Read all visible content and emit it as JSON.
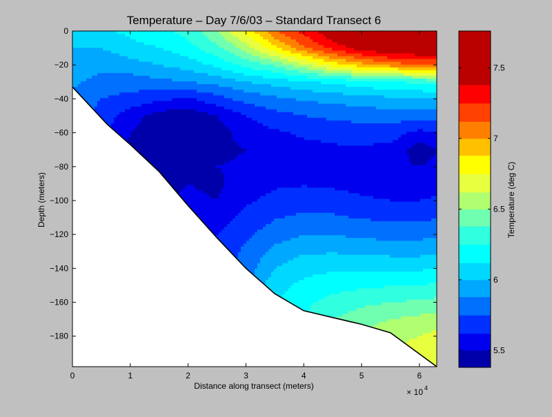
{
  "chart_data": {
    "type": "heatmap",
    "subtype": "filled-contour",
    "title": "Temperature – Day 7/6/03 – Standard Transect 6",
    "xlabel": "Distance along transect (meters)",
    "ylabel": "Depth (meters)",
    "x_multiplier_label": "× 10",
    "x_multiplier_exponent": "4",
    "xlim": [
      0,
      63000
    ],
    "ylim": [
      -198,
      0
    ],
    "x_ticks": [
      0,
      10000,
      20000,
      30000,
      40000,
      50000,
      60000
    ],
    "x_tick_labels": [
      "0",
      "1",
      "2",
      "3",
      "4",
      "5",
      "6"
    ],
    "y_ticks": [
      0,
      -20,
      -40,
      -60,
      -80,
      -100,
      -120,
      -140,
      -160,
      -180
    ],
    "y_tick_labels": [
      "0",
      "−20",
      "−40",
      "−60",
      "−80",
      "−100",
      "−120",
      "−140",
      "−160",
      "−180"
    ],
    "colorbar": {
      "label": "Temperature (deg C)",
      "range": [
        5.38,
        7.76
      ],
      "ticks": [
        5.5,
        6,
        6.5,
        7,
        7.5
      ],
      "tick_labels": [
        "5.5",
        "6",
        "6.5",
        "7",
        "7.5"
      ],
      "levels": [
        {
          "min": 5.38,
          "max": 5.5,
          "color": "#0000aa"
        },
        {
          "min": 5.5,
          "max": 5.62,
          "color": "#0000ee"
        },
        {
          "min": 5.62,
          "max": 5.75,
          "color": "#0030ff"
        },
        {
          "min": 5.75,
          "max": 5.88,
          "color": "#0070ff"
        },
        {
          "min": 5.88,
          "max": 6.0,
          "color": "#00a8ff"
        },
        {
          "min": 6.0,
          "max": 6.12,
          "color": "#00d8ff"
        },
        {
          "min": 6.12,
          "max": 6.25,
          "color": "#00ffff"
        },
        {
          "min": 6.25,
          "max": 6.38,
          "color": "#30ffe0"
        },
        {
          "min": 6.38,
          "max": 6.5,
          "color": "#70ffb0"
        },
        {
          "min": 6.5,
          "max": 6.62,
          "color": "#b0ff70"
        },
        {
          "min": 6.62,
          "max": 6.75,
          "color": "#e8ff40"
        },
        {
          "min": 6.75,
          "max": 6.88,
          "color": "#ffff00"
        },
        {
          "min": 6.88,
          "max": 7.0,
          "color": "#ffc000"
        },
        {
          "min": 7.0,
          "max": 7.12,
          "color": "#ff8000"
        },
        {
          "min": 7.12,
          "max": 7.25,
          "color": "#ff4000"
        },
        {
          "min": 7.25,
          "max": 7.38,
          "color": "#ff0000"
        },
        {
          "min": 7.38,
          "max": 7.76,
          "color": "#bb0000"
        }
      ]
    },
    "seafloor_profile": {
      "x": [
        0,
        3000,
        6000,
        10000,
        15000,
        20000,
        25000,
        30000,
        35000,
        40000,
        45000,
        50000,
        55000,
        63000
      ],
      "depth": [
        -33,
        -44,
        -55,
        -67,
        -83,
        -103,
        -122,
        -140,
        -155,
        -165,
        -169,
        -173,
        -178,
        -198
      ]
    },
    "temperature_profiles": {
      "depth": [
        0,
        -10,
        -20,
        -30,
        -40,
        -50,
        -60,
        -70,
        -80,
        -90,
        -100,
        -110,
        -120,
        -130,
        -140,
        -150,
        -160,
        -170,
        -180,
        -190,
        -198
      ],
      "columns": [
        {
          "x": 0,
          "temps": [
            6.05,
            6.0,
            5.95,
            5.9,
            5.85,
            5.8,
            5.75,
            5.7,
            5.65,
            5.62,
            5.6,
            5.6,
            5.6,
            5.6,
            5.6,
            5.6,
            5.6,
            5.6,
            5.6,
            5.6,
            5.6
          ]
        },
        {
          "x": 5000,
          "temps": [
            6.1,
            6.0,
            5.9,
            5.85,
            5.75,
            5.7,
            5.65,
            5.6,
            5.55,
            5.52,
            5.5,
            5.5,
            5.5,
            5.5,
            5.5,
            5.5,
            5.5,
            5.5,
            5.5,
            5.5,
            5.5
          ]
        },
        {
          "x": 10000,
          "temps": [
            6.15,
            6.08,
            5.95,
            5.82,
            5.7,
            5.55,
            5.5,
            5.48,
            5.47,
            5.47,
            5.47,
            5.47,
            5.47,
            5.47,
            5.47,
            5.47,
            5.47,
            5.47,
            5.47,
            5.47,
            5.47
          ]
        },
        {
          "x": 15000,
          "temps": [
            6.2,
            6.12,
            6.0,
            5.85,
            5.65,
            5.45,
            5.42,
            5.42,
            5.44,
            5.46,
            5.48,
            5.5,
            5.5,
            5.5,
            5.5,
            5.5,
            5.5,
            5.5,
            5.5,
            5.5,
            5.5
          ]
        },
        {
          "x": 20000,
          "temps": [
            6.3,
            6.2,
            6.05,
            5.88,
            5.6,
            5.42,
            5.4,
            5.42,
            5.46,
            5.5,
            5.52,
            5.54,
            5.56,
            5.58,
            5.58,
            5.58,
            5.58,
            5.58,
            5.58,
            5.58,
            5.58
          ]
        },
        {
          "x": 25000,
          "temps": [
            6.5,
            6.35,
            6.15,
            5.92,
            5.7,
            5.5,
            5.45,
            5.47,
            5.5,
            5.48,
            5.5,
            5.56,
            5.62,
            5.65,
            5.65,
            5.65,
            5.65,
            5.65,
            5.65,
            5.65,
            5.65
          ]
        },
        {
          "x": 30000,
          "temps": [
            6.8,
            6.55,
            6.3,
            6.0,
            5.8,
            5.62,
            5.55,
            5.5,
            5.52,
            5.55,
            5.6,
            5.66,
            5.72,
            5.78,
            5.82,
            5.85,
            5.85,
            5.85,
            5.85,
            5.85,
            5.85
          ]
        },
        {
          "x": 35000,
          "temps": [
            7.1,
            6.85,
            6.4,
            6.05,
            5.85,
            5.7,
            5.6,
            5.56,
            5.57,
            5.6,
            5.66,
            5.74,
            5.82,
            5.92,
            6.0,
            6.08,
            6.1,
            6.1,
            6.1,
            6.1,
            6.1
          ]
        },
        {
          "x": 40000,
          "temps": [
            7.3,
            7.1,
            6.6,
            6.1,
            5.9,
            5.75,
            5.64,
            5.58,
            5.58,
            5.61,
            5.68,
            5.78,
            5.88,
            5.98,
            6.08,
            6.15,
            6.22,
            6.25,
            6.25,
            6.25,
            6.25
          ]
        },
        {
          "x": 45000,
          "temps": [
            7.5,
            7.3,
            6.8,
            6.15,
            5.92,
            5.78,
            5.66,
            5.6,
            5.58,
            5.6,
            5.67,
            5.77,
            5.88,
            5.99,
            6.1,
            6.2,
            6.3,
            6.38,
            6.42,
            6.42,
            6.42
          ]
        },
        {
          "x": 50000,
          "temps": [
            7.65,
            7.45,
            6.95,
            6.2,
            5.95,
            5.8,
            5.68,
            5.6,
            5.56,
            5.58,
            5.64,
            5.74,
            5.85,
            5.97,
            6.1,
            6.22,
            6.35,
            6.45,
            6.52,
            6.55,
            6.55
          ]
        },
        {
          "x": 55000,
          "temps": [
            7.7,
            7.55,
            7.05,
            6.25,
            5.97,
            5.82,
            5.68,
            5.58,
            5.52,
            5.55,
            5.62,
            5.72,
            5.84,
            5.96,
            6.1,
            6.24,
            6.38,
            6.5,
            6.58,
            6.62,
            6.62
          ]
        },
        {
          "x": 60000,
          "temps": [
            7.72,
            7.58,
            7.1,
            6.28,
            5.98,
            5.8,
            5.58,
            5.44,
            5.5,
            5.55,
            5.62,
            5.72,
            5.84,
            5.96,
            6.1,
            6.25,
            6.4,
            6.53,
            6.62,
            6.68,
            6.7
          ]
        },
        {
          "x": 63000,
          "temps": [
            7.72,
            7.6,
            7.12,
            6.3,
            6.0,
            5.82,
            5.62,
            5.5,
            5.52,
            5.57,
            5.64,
            5.74,
            5.86,
            5.98,
            6.12,
            6.27,
            6.42,
            6.56,
            6.66,
            6.72,
            6.74
          ]
        }
      ]
    }
  }
}
